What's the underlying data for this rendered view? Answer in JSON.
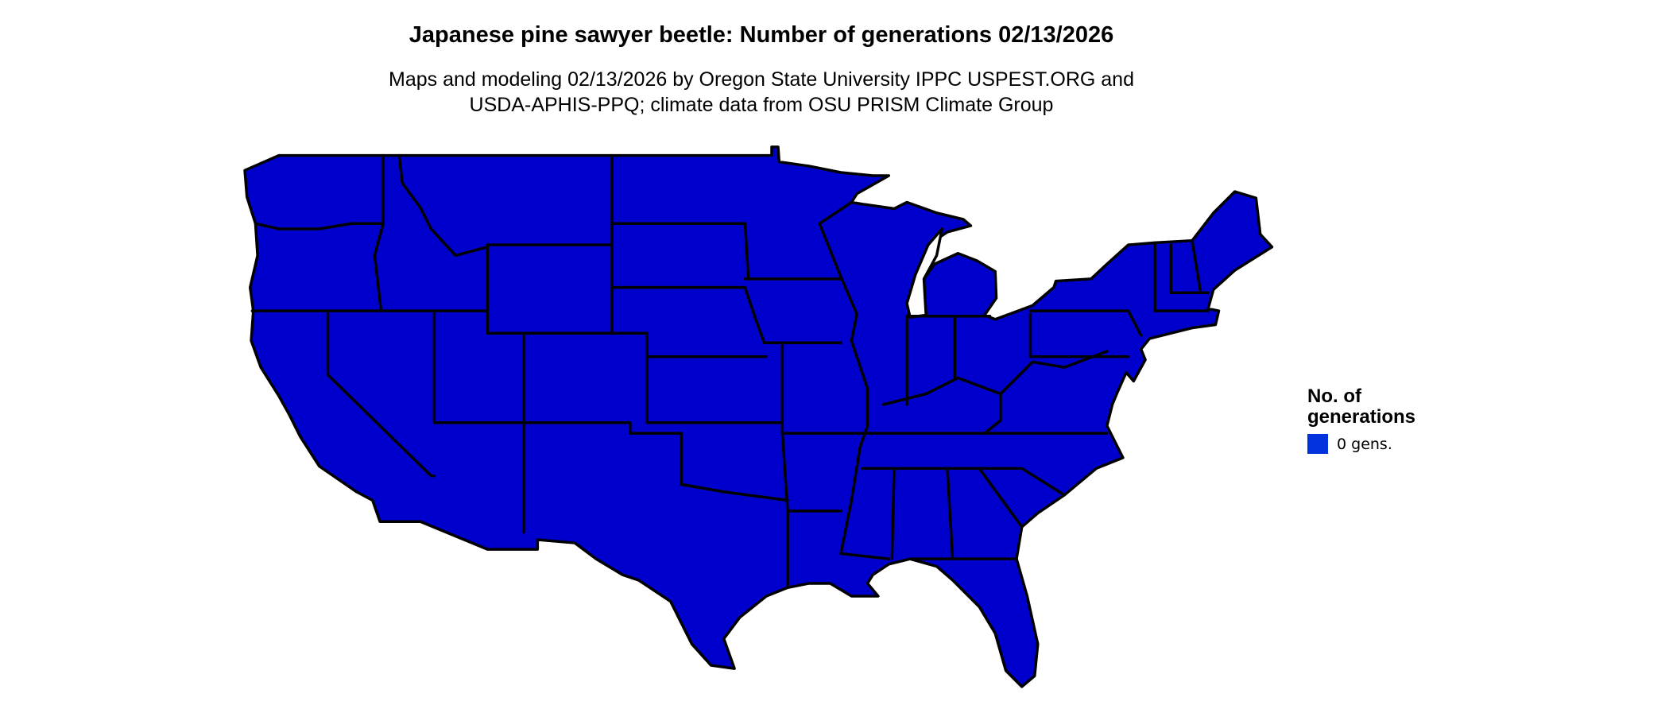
{
  "title": "Japanese pine sawyer beetle: Number of generations 02/13/2026",
  "subtitle_line1": "Maps and modeling 02/13/2026 by Oregon State University IPPC USPEST.ORG and",
  "subtitle_line2": "USDA-APHIS-PPQ; climate data from OSU PRISM Climate Group",
  "map": {
    "region": "Contiguous United States",
    "fill_color": "#0000CC",
    "border_color": "#000000"
  },
  "legend": {
    "title_line1": "No. of",
    "title_line2": "generations",
    "items": [
      {
        "label": "0 gens.",
        "color": "#0033DD"
      }
    ]
  }
}
